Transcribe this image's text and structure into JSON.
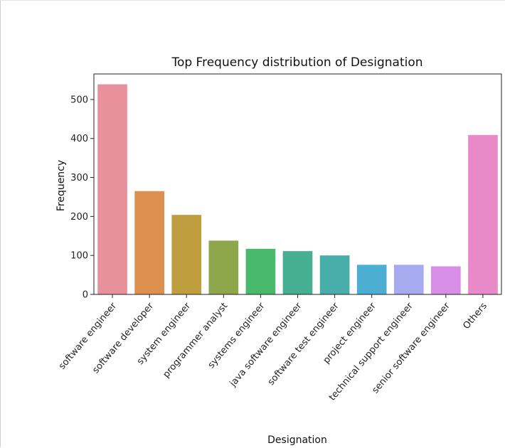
{
  "chart_data": {
    "type": "bar",
    "title": "Top Frequency distribution of Designation",
    "xlabel": "Designation",
    "ylabel": "Frequency",
    "ylim": [
      0,
      550
    ],
    "yticks": [
      0,
      100,
      200,
      300,
      400,
      500
    ],
    "grid": false,
    "categories": [
      "software engineer",
      "software developer",
      "system engineer",
      "programmer analyst",
      "systems engineer",
      "java software engineer",
      "software test engineer",
      "project engineer",
      "technical support engineer",
      "senior software engineer",
      "Others"
    ],
    "values": [
      539,
      265,
      204,
      138,
      117,
      111,
      100,
      76,
      76,
      72,
      409
    ],
    "colors": [
      "#e8919c",
      "#dd8f4d",
      "#bf9e40",
      "#8fa74b",
      "#49b96b",
      "#46ae92",
      "#48aeaa",
      "#4caed0",
      "#a6aaee",
      "#d88ee6",
      "#e88ac8"
    ]
  }
}
